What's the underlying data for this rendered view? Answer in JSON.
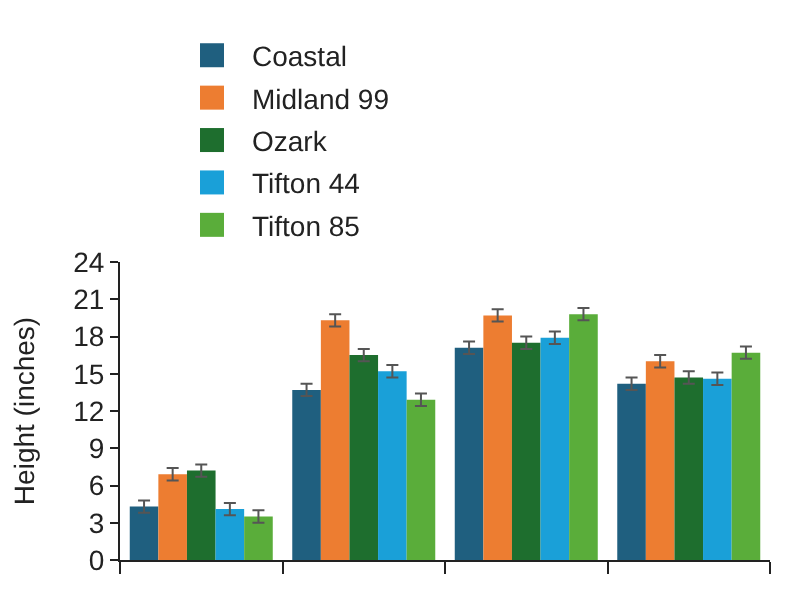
{
  "chart_data": {
    "type": "bar",
    "ylabel": "Height (inches)",
    "categories": [
      null,
      null,
      null,
      null
    ],
    "series": [
      {
        "name": "Coastal",
        "color": "#1f5f7f",
        "values": [
          4.3,
          13.7,
          17.1,
          14.2
        ],
        "errors": [
          0.5,
          0.5,
          0.5,
          0.5
        ]
      },
      {
        "name": "Midland 99",
        "color": "#ed7d31",
        "values": [
          6.9,
          19.3,
          19.7,
          16.0
        ],
        "errors": [
          0.5,
          0.5,
          0.5,
          0.5
        ]
      },
      {
        "name": "Ozark",
        "color": "#1e6e2e",
        "values": [
          7.2,
          16.5,
          17.5,
          14.7
        ],
        "errors": [
          0.5,
          0.5,
          0.5,
          0.5
        ]
      },
      {
        "name": "Tifton 44",
        "color": "#1aa0d8",
        "values": [
          4.1,
          15.2,
          17.9,
          14.6
        ],
        "errors": [
          0.5,
          0.5,
          0.5,
          0.5
        ]
      },
      {
        "name": "Tifton 85",
        "color": "#5aad3a",
        "values": [
          3.5,
          12.9,
          19.8,
          16.7
        ],
        "errors": [
          0.5,
          0.5,
          0.5,
          0.5
        ]
      }
    ],
    "ylim": [
      0,
      24
    ],
    "yticks": [
      0,
      3,
      6,
      9,
      12,
      15,
      18,
      21,
      24
    ],
    "legend": "top"
  }
}
